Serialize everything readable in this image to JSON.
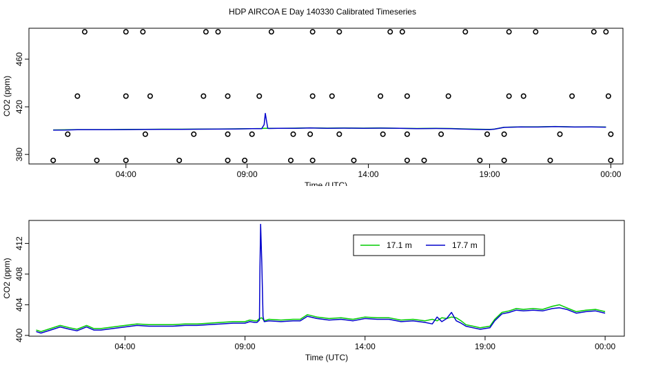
{
  "title": "HDP AIRCOA E  Day 140330  Calibrated Timeseries",
  "colors": {
    "green": "#00cc00",
    "blue": "#0000cc",
    "axis": "#000000"
  },
  "chart_data": [
    {
      "type": "line",
      "panel": "top",
      "xlabel": "Time (UTC)",
      "ylabel": "CO2 (ppm)",
      "x_unit": "hours UTC (day 140330)",
      "xlim": [
        0.0,
        24.5
      ],
      "ylim": [
        372,
        486
      ],
      "xticks": [
        4,
        9,
        14,
        19,
        24
      ],
      "xtick_labels": [
        "04:00",
        "09:00",
        "14:00",
        "19:00",
        "00:00"
      ],
      "yticks": [
        380,
        420,
        460
      ],
      "ytick_labels": [
        "380",
        "420",
        "460"
      ],
      "series": [
        {
          "name": "17.1 m",
          "color": "#00cc00",
          "x": [
            1.0,
            1.5,
            2.0,
            2.6,
            3.3,
            4.0,
            4.8,
            5.5,
            6.3,
            7.0,
            7.8,
            8.5,
            9.2,
            9.6,
            9.75,
            9.9,
            10.3,
            11.0,
            11.6,
            12.3,
            13.0,
            13.8,
            14.5,
            15.3,
            16.0,
            16.8,
            17.4,
            17.8,
            18.5,
            19.0,
            19.2,
            19.6,
            20.3,
            21.0,
            21.7,
            22.5,
            23.2,
            23.8
          ],
          "y": [
            400.6,
            400.7,
            400.9,
            400.9,
            400.9,
            401.0,
            401.1,
            401.2,
            401.2,
            401.3,
            401.4,
            401.5,
            401.7,
            401.8,
            402.0,
            401.9,
            402.0,
            402.1,
            402.3,
            402.1,
            402.2,
            402.1,
            402.2,
            402.0,
            401.8,
            401.9,
            401.8,
            401.5,
            401.2,
            401.0,
            401.3,
            402.8,
            403.2,
            403.2,
            403.5,
            403.1,
            403.2,
            403.0
          ]
        },
        {
          "name": "17.7 m",
          "color": "#0000cc",
          "x": [
            1.0,
            1.5,
            2.0,
            2.6,
            3.3,
            4.0,
            4.8,
            5.5,
            6.3,
            7.0,
            7.8,
            8.5,
            9.2,
            9.6,
            9.7,
            9.75,
            9.8,
            9.85,
            9.9,
            10.3,
            11.0,
            11.6,
            12.3,
            13.0,
            13.8,
            14.5,
            15.3,
            16.0,
            16.8,
            17.4,
            17.8,
            18.5,
            19.0,
            19.2,
            19.6,
            20.3,
            21.0,
            21.7,
            22.5,
            23.2,
            23.8
          ],
          "y": [
            400.4,
            400.5,
            400.8,
            400.8,
            400.8,
            400.9,
            401.0,
            401.1,
            401.1,
            401.2,
            401.3,
            401.4,
            401.6,
            401.7,
            405.0,
            414.5,
            408.0,
            402.0,
            401.8,
            401.9,
            402.0,
            402.2,
            402.0,
            402.1,
            402.0,
            402.1,
            401.9,
            401.7,
            401.8,
            401.7,
            401.4,
            401.0,
            400.9,
            401.2,
            402.7,
            403.1,
            403.0,
            403.4,
            403.0,
            403.1,
            402.9
          ]
        }
      ],
      "reference_points": {
        "x": [
          1.0,
          2.8,
          4.0,
          6.2,
          8.2,
          8.9,
          10.8,
          11.7,
          13.4,
          15.6,
          16.3,
          18.6,
          19.6,
          21.5,
          24.0,
          1.6,
          4.8,
          6.8,
          8.2,
          9.2,
          10.9,
          11.6,
          12.8,
          14.6,
          15.6,
          17.0,
          18.9,
          19.6,
          21.9,
          24.0,
          2.0,
          4.0,
          5.0,
          7.2,
          8.2,
          9.5,
          11.7,
          12.5,
          14.5,
          15.6,
          17.3,
          19.8,
          20.4,
          22.4,
          23.9,
          2.3,
          4.0,
          4.7,
          7.3,
          7.8,
          10.0,
          11.7,
          12.8,
          14.9,
          15.4,
          18.0,
          19.8,
          20.9,
          23.3,
          23.8
        ],
        "y": [
          375,
          375,
          375,
          375,
          375,
          375,
          375,
          375,
          375,
          375,
          375,
          375,
          375,
          375,
          375,
          397,
          397,
          397,
          397,
          397,
          397,
          397,
          397,
          397,
          397,
          397,
          397,
          397,
          397,
          397,
          429,
          429,
          429,
          429,
          429,
          429,
          429,
          429,
          429,
          429,
          429,
          429,
          429,
          429,
          429,
          483,
          483,
          483,
          483,
          483,
          483,
          483,
          483,
          483,
          483,
          483,
          483,
          483,
          483,
          483
        ]
      }
    },
    {
      "type": "line",
      "panel": "bottom",
      "xlabel": "Time (UTC)",
      "ylabel": "CO2 (ppm)",
      "x_unit": "hours UTC (day 140330)",
      "xlim": [
        0.0,
        24.8
      ],
      "ylim": [
        399.9,
        415.0
      ],
      "xticks": [
        4,
        9,
        14,
        19,
        24
      ],
      "xtick_labels": [
        "04:00",
        "09:00",
        "14:00",
        "19:00",
        "00:00"
      ],
      "yticks": [
        400,
        404,
        408,
        412
      ],
      "ytick_labels": [
        "400",
        "404",
        "408",
        "412"
      ],
      "legend": {
        "position": "top-right",
        "entries": [
          "17.1 m",
          "17.7 m"
        ]
      },
      "series": [
        {
          "name": "17.1 m",
          "color": "#00cc00",
          "x": [
            0.3,
            0.5,
            0.9,
            1.3,
            1.7,
            2.0,
            2.4,
            2.7,
            3.0,
            3.5,
            4.0,
            4.5,
            5.0,
            5.5,
            6.0,
            6.5,
            7.0,
            7.5,
            8.0,
            8.5,
            9.0,
            9.2,
            9.4,
            9.5,
            9.6,
            9.7,
            9.8,
            10.0,
            10.5,
            11.0,
            11.3,
            11.6,
            12.0,
            12.5,
            13.0,
            13.5,
            14.0,
            14.5,
            15.0,
            15.5,
            16.0,
            16.5,
            16.8,
            17.0,
            17.2,
            17.4,
            17.6,
            17.8,
            18.0,
            18.2,
            18.5,
            18.8,
            19.0,
            19.2,
            19.4,
            19.7,
            20.0,
            20.3,
            20.6,
            21.0,
            21.4,
            21.8,
            22.1,
            22.4,
            22.8,
            23.2,
            23.6,
            24.0
          ],
          "y": [
            400.7,
            400.5,
            400.9,
            401.3,
            401.0,
            400.8,
            401.3,
            400.9,
            400.9,
            401.1,
            401.3,
            401.5,
            401.4,
            401.4,
            401.4,
            401.5,
            401.5,
            401.6,
            401.7,
            401.8,
            401.8,
            402.0,
            401.9,
            401.9,
            402.2,
            402.3,
            401.9,
            402.1,
            402.0,
            402.1,
            402.1,
            402.7,
            402.4,
            402.2,
            402.3,
            402.1,
            402.4,
            402.3,
            402.3,
            402.0,
            402.1,
            401.9,
            402.1,
            401.9,
            402.3,
            402.2,
            402.4,
            402.3,
            401.9,
            401.4,
            401.2,
            401.0,
            401.1,
            401.2,
            402.1,
            403.0,
            403.2,
            403.5,
            403.4,
            403.5,
            403.4,
            403.8,
            404.0,
            403.6,
            403.1,
            403.3,
            403.4,
            403.1
          ]
        },
        {
          "name": "17.7 m",
          "color": "#0000cc",
          "x": [
            0.3,
            0.5,
            0.9,
            1.3,
            1.7,
            2.0,
            2.4,
            2.7,
            3.0,
            3.5,
            4.0,
            4.5,
            5.0,
            5.5,
            6.0,
            6.5,
            7.0,
            7.5,
            8.0,
            8.5,
            9.0,
            9.2,
            9.4,
            9.5,
            9.6,
            9.62,
            9.65,
            9.7,
            9.75,
            9.8,
            10.0,
            10.5,
            11.0,
            11.3,
            11.6,
            12.0,
            12.5,
            13.0,
            13.5,
            14.0,
            14.5,
            15.0,
            15.5,
            16.0,
            16.5,
            16.8,
            17.0,
            17.2,
            17.4,
            17.6,
            17.8,
            18.0,
            18.2,
            18.5,
            18.8,
            19.0,
            19.2,
            19.4,
            19.7,
            20.0,
            20.3,
            20.6,
            21.0,
            21.4,
            21.8,
            22.1,
            22.4,
            22.8,
            23.2,
            23.6,
            24.0
          ],
          "y": [
            400.5,
            400.3,
            400.7,
            401.1,
            400.8,
            400.6,
            401.1,
            400.7,
            400.7,
            400.9,
            401.1,
            401.3,
            401.2,
            401.2,
            401.2,
            401.3,
            401.3,
            401.4,
            401.5,
            401.6,
            401.6,
            401.8,
            401.7,
            401.7,
            402.0,
            408.0,
            414.5,
            409.5,
            402.5,
            401.8,
            401.9,
            401.8,
            401.9,
            401.9,
            402.5,
            402.2,
            402.0,
            402.1,
            401.9,
            402.2,
            402.1,
            402.1,
            401.8,
            401.9,
            401.7,
            401.5,
            402.4,
            401.8,
            402.2,
            403.0,
            401.9,
            401.6,
            401.2,
            401.0,
            400.8,
            400.9,
            401.0,
            401.9,
            402.8,
            403.0,
            403.3,
            403.2,
            403.3,
            403.2,
            403.5,
            403.6,
            403.4,
            402.9,
            403.1,
            403.2,
            402.9
          ]
        }
      ]
    }
  ]
}
